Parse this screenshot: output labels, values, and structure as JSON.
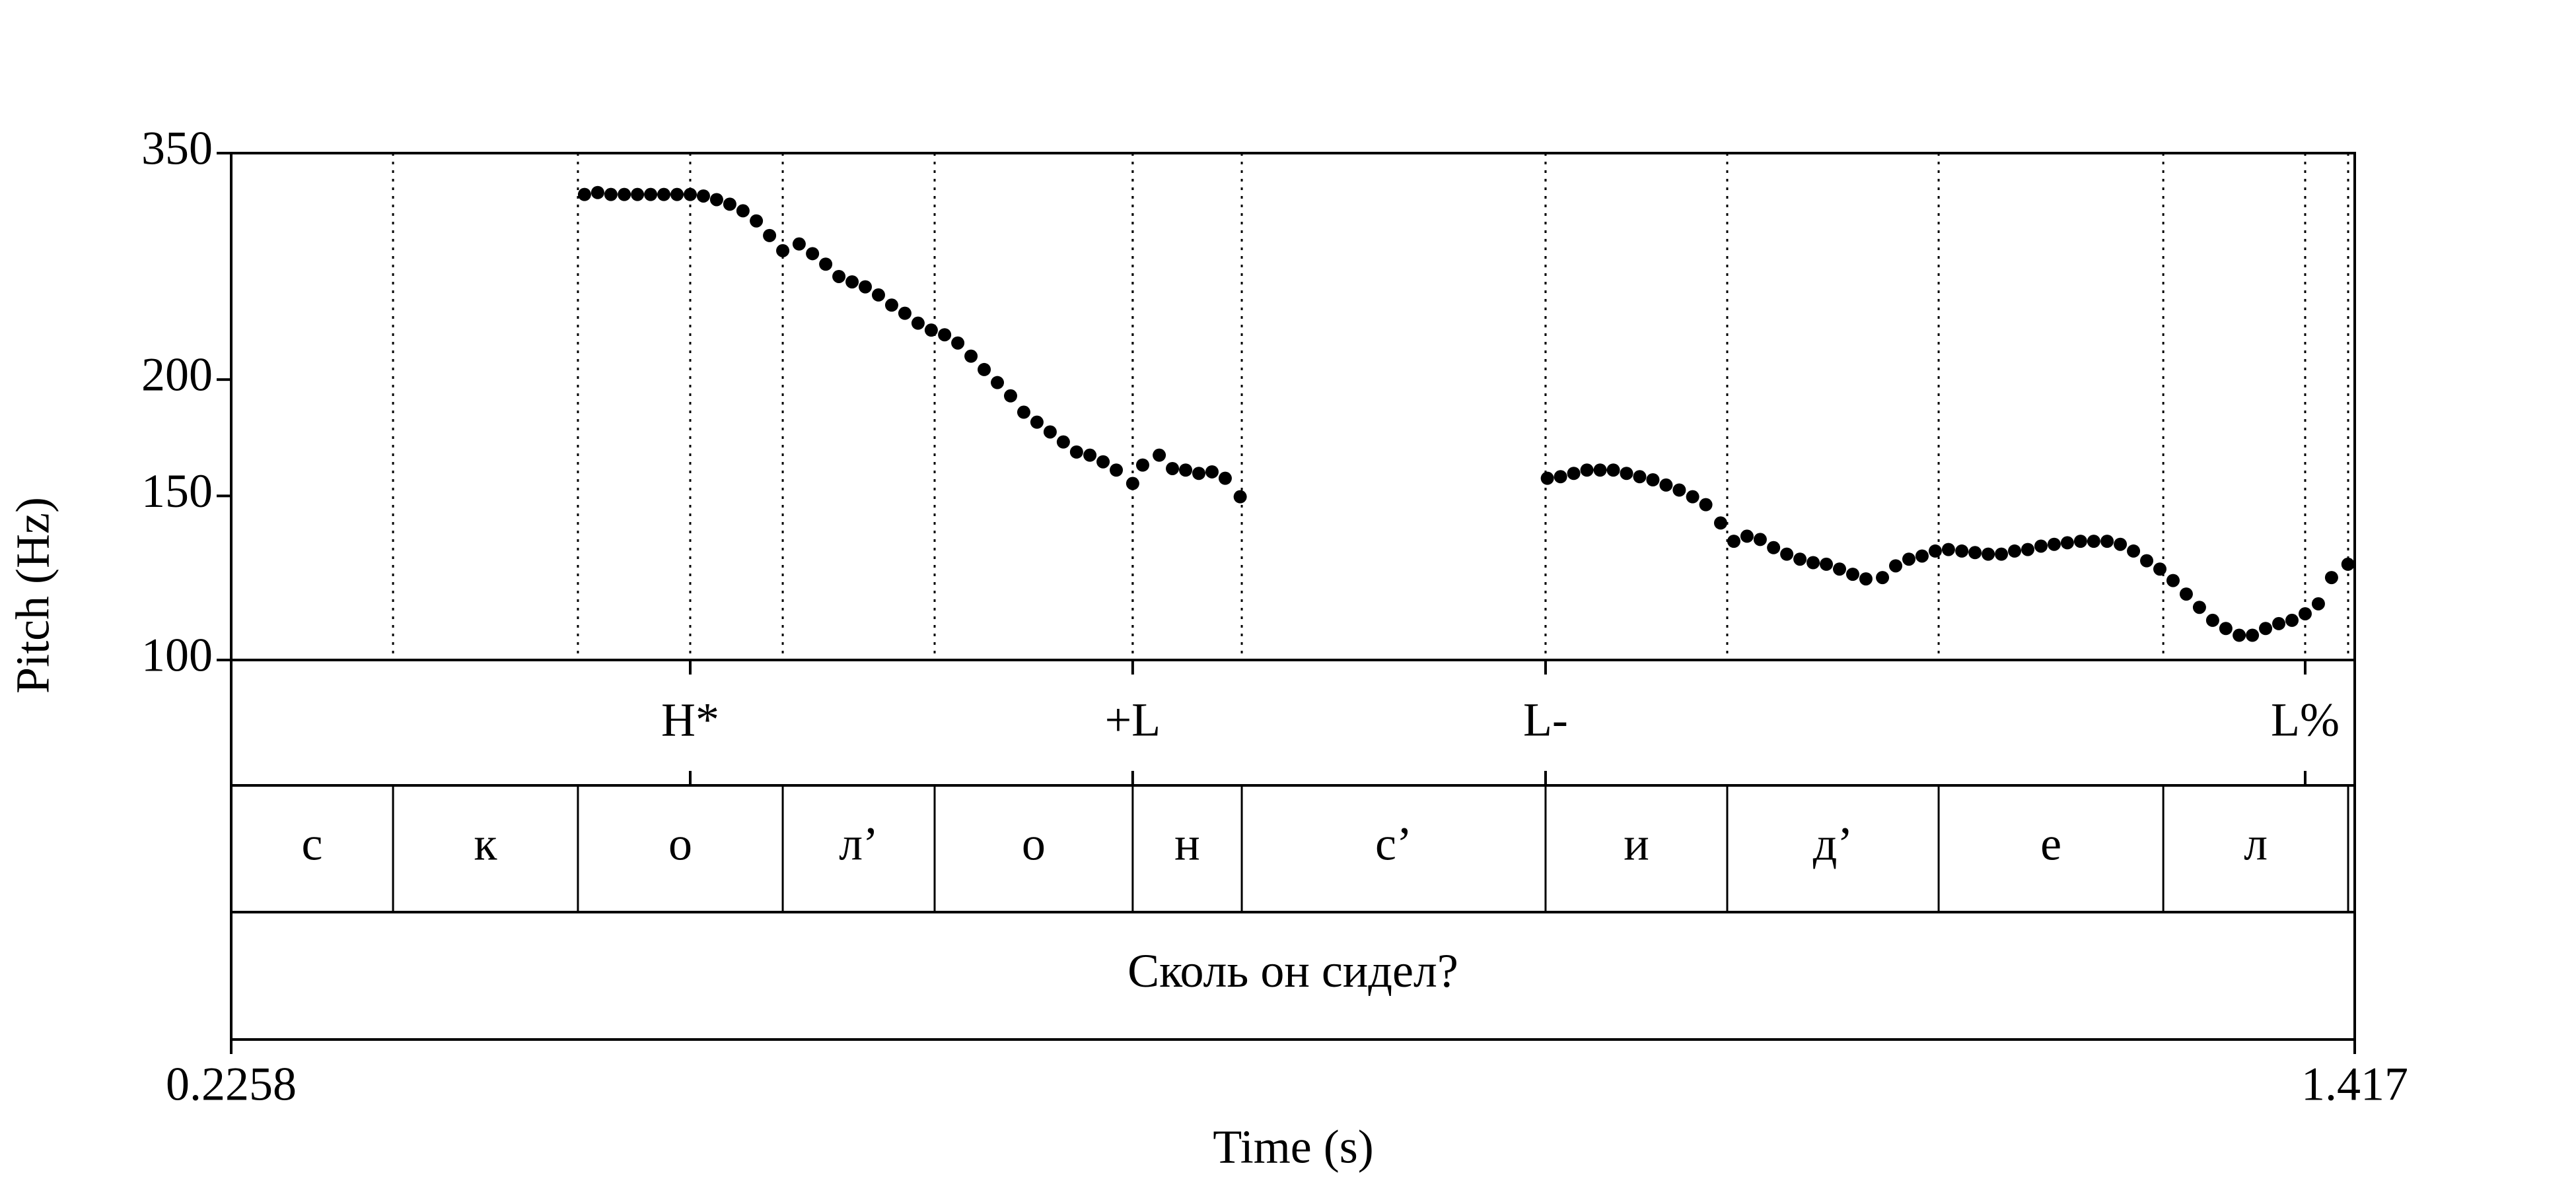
{
  "chart_data": {
    "type": "pitch",
    "xlabel": "Time (s)",
    "ylabel": "Pitch (Hz)",
    "xlim": [
      0.2258,
      1.417
    ],
    "xticks": [
      0.2258,
      1.417
    ],
    "ylim": [
      100,
      350
    ],
    "yticks": [
      100,
      150,
      200,
      350
    ],
    "log_y": true,
    "color": "#000000",
    "segments": [
      {
        "x": [
          0.424,
          0.4314,
          0.4388,
          0.4463,
          0.4537,
          0.4611,
          0.4685,
          0.4759,
          0.4833,
          0.4907,
          0.4981,
          0.5055,
          0.5129,
          0.5204,
          0.5278,
          0.5352,
          0.5444,
          0.5519,
          0.5593,
          0.5667,
          0.5741,
          0.5815,
          0.5889,
          0.5963,
          0.6037,
          0.6111,
          0.6185,
          0.626,
          0.6334,
          0.6408,
          0.6482,
          0.6556,
          0.663,
          0.6704,
          0.6778,
          0.6852,
          0.6926,
          0.7,
          0.7075,
          0.7149,
          0.7223,
          0.7315,
          0.7371,
          0.7464,
          0.7538,
          0.7612,
          0.7686,
          0.776,
          0.7834,
          0.7918
        ],
        "values": [
          316,
          317.5,
          316,
          316,
          316,
          316,
          316,
          316,
          316,
          314.8,
          312,
          308.5,
          303.5,
          296,
          285.5,
          275,
          279.6,
          273,
          266,
          258,
          254.6,
          251.5,
          246.5,
          240.4,
          235.6,
          229.9,
          226,
          223.4,
          218.9,
          211.9,
          205,
          198.5,
          192.1,
          184.5,
          180,
          175.7,
          171.4,
          167.2,
          165.9,
          163.2,
          159.9,
          154.7,
          161.9,
          165.9,
          160.5,
          159.9,
          158.6,
          159.2,
          156.7,
          149.7
        ]
      },
      {
        "x": [
          0.9641,
          0.9715,
          0.9789,
          0.9863,
          0.9937,
          1.0011,
          1.0085,
          1.0159,
          1.0233,
          1.0307,
          1.0381,
          1.0456,
          1.053,
          1.0613,
          1.0687,
          1.0761,
          1.0835,
          1.091,
          1.0984,
          1.1058,
          1.1132,
          1.1206,
          1.128,
          1.1354,
          1.1428,
          1.1521,
          1.1595,
          1.1669,
          1.1743,
          1.1817,
          1.1891,
          1.1966,
          1.204,
          1.2114,
          1.2188,
          1.2262,
          1.2336,
          1.241,
          1.2484,
          1.2558,
          1.2632,
          1.2706,
          1.2781,
          1.2855,
          1.2929,
          1.3003,
          1.3077,
          1.3151,
          1.3225,
          1.3299,
          1.3373,
          1.3447,
          1.3522,
          1.3596,
          1.367,
          1.3744,
          1.3818,
          1.3892,
          1.3966,
          1.404,
          1.4132
        ],
        "values": [
          156.7,
          157.3,
          158.6,
          159.9,
          159.9,
          159.9,
          158.6,
          157.3,
          156.1,
          154.1,
          152.2,
          149.7,
          146.8,
          140.3,
          134.1,
          135.8,
          134.7,
          132.0,
          129.9,
          128.3,
          127.2,
          126.7,
          125.2,
          123.6,
          122.2,
          122.6,
          126.2,
          128.3,
          129.3,
          130.9,
          131.4,
          130.9,
          130.4,
          129.9,
          129.9,
          130.9,
          131.4,
          132.5,
          133.1,
          133.6,
          134.1,
          134.1,
          134.1,
          133.1,
          130.9,
          127.8,
          125.2,
          121.7,
          117.7,
          113.9,
          110.3,
          108.1,
          106.3,
          106.3,
          108.1,
          109.4,
          110.3,
          112.1,
          114.9,
          122.6,
          126.7
        ]
      }
    ],
    "tones": {
      "times": [
        0.4833,
        0.7315,
        0.9631,
        1.3892
      ],
      "labels": [
        "H*",
        "+L",
        "L-",
        "L%"
      ]
    },
    "phones": {
      "boundaries": [
        0.3166,
        0.4203,
        0.5352,
        0.6204,
        0.7315,
        0.7927,
        0.9631,
        1.065,
        1.1836,
        1.3096,
        1.4133
      ],
      "labels": [
        "с",
        "к",
        "о",
        "л’",
        "о",
        "н",
        "с’",
        "и",
        "д’",
        "е",
        "л",
        null
      ]
    },
    "words": {
      "labels": [
        "Сколь он сидел?"
      ]
    }
  }
}
